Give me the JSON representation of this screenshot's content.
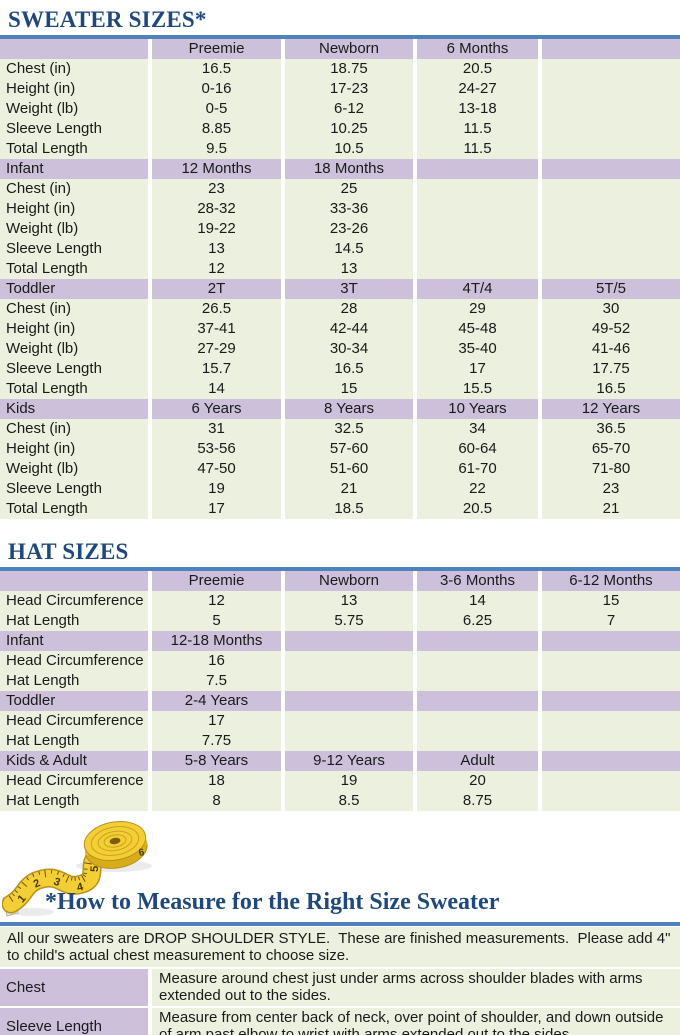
{
  "theme": {
    "accent": "#4F81BD",
    "heading": "#1F497D",
    "purple": "#CCC0DA",
    "green": "#EBF1DE",
    "tape_yellow": "#F3CE35"
  },
  "sweater": {
    "title": "SWEATER SIZES*"
  },
  "hat": {
    "title": "HAT SIZES"
  },
  "sweater_table": {
    "rows": [
      {
        "type": "header",
        "cells": [
          "",
          "Preemie",
          "Newborn",
          "6 Months",
          ""
        ]
      },
      {
        "type": "data",
        "cells": [
          "Chest (in)",
          "16.5",
          "18.75",
          "20.5",
          ""
        ]
      },
      {
        "type": "data",
        "cells": [
          "Height (in)",
          "0-16",
          "17-23",
          "24-27",
          ""
        ]
      },
      {
        "type": "data",
        "cells": [
          "Weight (lb)",
          "0-5",
          "6-12",
          "13-18",
          ""
        ]
      },
      {
        "type": "data",
        "cells": [
          "Sleeve Length",
          "8.85",
          "10.25",
          "11.5",
          ""
        ]
      },
      {
        "type": "data",
        "cells": [
          "Total Length",
          "9.5",
          "10.5",
          "11.5",
          ""
        ]
      },
      {
        "type": "header",
        "cells": [
          "Infant",
          "12 Months",
          "18 Months",
          "",
          ""
        ]
      },
      {
        "type": "data",
        "cells": [
          "Chest (in)",
          "23",
          "25",
          "",
          ""
        ]
      },
      {
        "type": "data",
        "cells": [
          "Height (in)",
          "28-32",
          "33-36",
          "",
          ""
        ]
      },
      {
        "type": "data",
        "cells": [
          "Weight (lb)",
          "19-22",
          "23-26",
          "",
          ""
        ]
      },
      {
        "type": "data",
        "cells": [
          "Sleeve Length",
          "13",
          "14.5",
          "",
          ""
        ]
      },
      {
        "type": "data",
        "cells": [
          "Total Length",
          "12",
          "13",
          "",
          ""
        ]
      },
      {
        "type": "header",
        "cells": [
          "Toddler",
          "2T",
          "3T",
          "4T/4",
          "5T/5"
        ]
      },
      {
        "type": "data",
        "cells": [
          "Chest (in)",
          "26.5",
          "28",
          "29",
          "30"
        ]
      },
      {
        "type": "data",
        "cells": [
          "Height (in)",
          "37-41",
          "42-44",
          "45-48",
          "49-52"
        ]
      },
      {
        "type": "data",
        "cells": [
          "Weight (lb)",
          "27-29",
          "30-34",
          "35-40",
          "41-46"
        ]
      },
      {
        "type": "data",
        "cells": [
          "Sleeve Length",
          "15.7",
          "16.5",
          "17",
          "17.75"
        ]
      },
      {
        "type": "data",
        "cells": [
          "Total Length",
          "14",
          "15",
          "15.5",
          "16.5"
        ]
      },
      {
        "type": "header",
        "cells": [
          "Kids",
          "6 Years",
          "8 Years",
          "10 Years",
          "12 Years"
        ]
      },
      {
        "type": "data",
        "cells": [
          "Chest (in)",
          "31",
          "32.5",
          "34",
          "36.5"
        ]
      },
      {
        "type": "data",
        "cells": [
          "Height (in)",
          "53-56",
          "57-60",
          "60-64",
          "65-70"
        ]
      },
      {
        "type": "data",
        "cells": [
          "Weight (lb)",
          "47-50",
          "51-60",
          "61-70",
          "71-80"
        ]
      },
      {
        "type": "data",
        "cells": [
          "Sleeve Length",
          "19",
          "21",
          "22",
          "23"
        ]
      },
      {
        "type": "data",
        "cells": [
          "Total Length",
          "17",
          "18.5",
          "20.5",
          "21"
        ]
      }
    ]
  },
  "hat_table": {
    "rows": [
      {
        "type": "header",
        "cells": [
          "",
          "Preemie",
          "Newborn",
          "3-6 Months",
          "6-12 Months"
        ]
      },
      {
        "type": "data",
        "cells": [
          "Head Circumference",
          "12",
          "13",
          "14",
          "15"
        ]
      },
      {
        "type": "data",
        "cells": [
          "Hat Length",
          "5",
          "5.75",
          "6.25",
          "7"
        ]
      },
      {
        "type": "header",
        "cells": [
          "Infant",
          "12-18 Months",
          "",
          "",
          ""
        ]
      },
      {
        "type": "data",
        "cells": [
          "Head Circumference",
          "16",
          "",
          "",
          ""
        ]
      },
      {
        "type": "data",
        "cells": [
          "Hat Length",
          "7.5",
          "",
          "",
          ""
        ]
      },
      {
        "type": "header",
        "cells": [
          "Toddler",
          "2-4 Years",
          "",
          "",
          ""
        ]
      },
      {
        "type": "data",
        "cells": [
          "Head Circumference",
          "17",
          "",
          "",
          ""
        ]
      },
      {
        "type": "data",
        "cells": [
          "Hat Length",
          "7.75",
          "",
          "",
          ""
        ]
      },
      {
        "type": "header",
        "cells": [
          "Kids & Adult",
          "5-8 Years",
          "9-12 Years",
          "Adult",
          ""
        ]
      },
      {
        "type": "data",
        "cells": [
          "Head Circumference",
          "18",
          "19",
          "20",
          ""
        ]
      },
      {
        "type": "data",
        "cells": [
          "Hat Length",
          "8",
          "8.5",
          "8.75",
          ""
        ]
      }
    ]
  },
  "measure": {
    "title": "*How to Measure for the Right Size Sweater",
    "intro": "All our sweaters are DROP SHOULDER STYLE.  These are finished measurements.  Please add 4\" to child's actual chest measurement to choose size.",
    "tape_numbers": [
      "1",
      "2",
      "3",
      "4",
      "5",
      "6"
    ],
    "rows": [
      {
        "label": "Chest",
        "text": "Measure around chest just under arms across shoulder blades with arms extended out to the sides."
      },
      {
        "label": "Sleeve Length",
        "text": "Measure from center back of neck, over point of shoulder, and down outside of arm past elbow to wrist with arms extended out to the sides."
      }
    ]
  }
}
